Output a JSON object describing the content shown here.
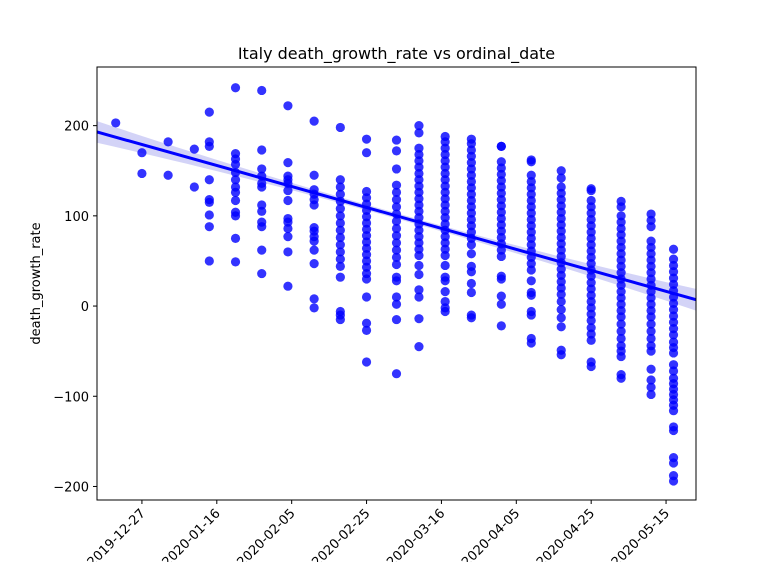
{
  "chart_data": {
    "type": "scatter",
    "title": "Italy death_growth_rate vs ordinal_date",
    "xlabel": "",
    "ylabel": "death_growth_rate",
    "x_ticks": [
      "2019-12-27",
      "2020-01-16",
      "2020-02-05",
      "2020-02-25",
      "2020-03-16",
      "2020-04-05",
      "2020-04-25",
      "2020-05-15"
    ],
    "y_ticks": [
      200,
      100,
      0,
      -100,
      -200
    ],
    "y_tick_labels": [
      "200",
      "100",
      "0",
      "−100",
      "−200"
    ],
    "xlim": [
      "2019-12-15",
      "2020-05-23"
    ],
    "ylim": [
      -215,
      265
    ],
    "grid": false,
    "point_color": "#0000ff",
    "line_color": "#0000ff",
    "band_color": "#c8c8f5",
    "regression": {
      "start": {
        "x": "2019-12-15",
        "y": 193
      },
      "end": {
        "x": "2020-05-23",
        "y": 7
      },
      "ci_halfwidth_edge": 12,
      "ci_halfwidth_center": 3
    },
    "points": [
      {
        "x": "2019-12-20",
        "y": [
          203
        ]
      },
      {
        "x": "2019-12-27",
        "y": [
          170,
          147
        ]
      },
      {
        "x": "2020-01-03",
        "y": [
          182,
          145
        ]
      },
      {
        "x": "2020-01-10",
        "y": [
          174,
          132
        ]
      },
      {
        "x": "2020-01-14",
        "y": [
          215,
          182,
          177,
          140,
          118,
          115,
          101,
          88,
          50
        ]
      },
      {
        "x": "2020-01-21",
        "y": [
          242,
          169,
          163,
          157,
          148,
          140,
          132,
          126,
          117,
          104,
          100,
          75,
          49
        ]
      },
      {
        "x": "2020-01-28",
        "y": [
          239,
          173,
          152,
          144,
          136,
          132,
          112,
          105,
          93,
          88,
          62,
          36
        ]
      },
      {
        "x": "2020-02-04",
        "y": [
          222,
          159,
          144,
          140,
          136,
          128,
          117,
          97,
          93,
          86,
          77,
          60,
          22
        ]
      },
      {
        "x": "2020-02-11",
        "y": [
          205,
          145,
          129,
          124,
          118,
          112,
          87,
          83,
          77,
          72,
          62,
          47,
          8,
          -2
        ]
      },
      {
        "x": "2020-02-18",
        "y": [
          198,
          140,
          132,
          124,
          116,
          108,
          100,
          92,
          84,
          76,
          68,
          60,
          52,
          44,
          32,
          -6,
          -10,
          -15
        ]
      },
      {
        "x": "2020-02-25",
        "y": [
          185,
          170,
          127,
          120,
          113,
          106,
          99,
          92,
          85,
          78,
          71,
          64,
          57,
          50,
          43,
          36,
          30,
          10,
          -19,
          -27,
          -62
        ]
      },
      {
        "x": "2020-03-04",
        "y": [
          184,
          172,
          152,
          134,
          126,
          118,
          110,
          102,
          94,
          86,
          78,
          70,
          62,
          54,
          46,
          32,
          28,
          10,
          2,
          -15,
          -75
        ]
      },
      {
        "x": "2020-03-10",
        "y": [
          200,
          192,
          175,
          168,
          161,
          154,
          147,
          140,
          133,
          126,
          119,
          112,
          105,
          98,
          91,
          84,
          77,
          70,
          63,
          56,
          45,
          35,
          18,
          10,
          -14,
          -45
        ]
      },
      {
        "x": "2020-03-17",
        "y": [
          188,
          182,
          175,
          168,
          161,
          154,
          147,
          140,
          133,
          126,
          119,
          112,
          105,
          98,
          91,
          84,
          77,
          70,
          63,
          56,
          45,
          32,
          28,
          16,
          5,
          -2,
          -6
        ]
      },
      {
        "x": "2020-03-24",
        "y": [
          185,
          180,
          173,
          166,
          159,
          152,
          145,
          138,
          131,
          124,
          117,
          110,
          103,
          96,
          89,
          82,
          75,
          68,
          58,
          44,
          38,
          25,
          15,
          -10,
          -13
        ]
      },
      {
        "x": "2020-04-01",
        "y": [
          177,
          177,
          160,
          153,
          146,
          139,
          132,
          125,
          118,
          111,
          104,
          97,
          90,
          83,
          76,
          69,
          62,
          55,
          33,
          30,
          11,
          2,
          -22
        ]
      },
      {
        "x": "2020-04-09",
        "y": [
          162,
          160,
          145,
          138,
          131,
          124,
          117,
          110,
          103,
          96,
          89,
          82,
          75,
          68,
          61,
          54,
          47,
          40,
          28,
          15,
          12,
          -6,
          -10,
          -36,
          -41
        ]
      },
      {
        "x": "2020-04-17",
        "y": [
          150,
          142,
          132,
          125,
          118,
          111,
          104,
          97,
          90,
          83,
          76,
          69,
          62,
          55,
          48,
          41,
          34,
          27,
          20,
          13,
          5,
          -4,
          -13,
          -23,
          -49,
          -54
        ]
      },
      {
        "x": "2020-04-25",
        "y": [
          130,
          128,
          117,
          110,
          103,
          96,
          89,
          82,
          75,
          68,
          61,
          54,
          47,
          40,
          33,
          26,
          19,
          12,
          5,
          -2,
          -9,
          -16,
          -24,
          -31,
          -38,
          -62,
          -67
        ]
      },
      {
        "x": "2020-05-03",
        "y": [
          116,
          110,
          100,
          93,
          86,
          79,
          72,
          65,
          58,
          51,
          44,
          37,
          30,
          23,
          16,
          9,
          2,
          -5,
          -12,
          -20,
          -28,
          -36,
          -44,
          -50,
          -56,
          -76,
          -80
        ]
      },
      {
        "x": "2020-05-11",
        "y": [
          102,
          95,
          88,
          72,
          65,
          58,
          51,
          44,
          37,
          30,
          23,
          16,
          9,
          2,
          -5,
          -12,
          -20,
          -28,
          -36,
          -44,
          -50,
          -70,
          -82,
          -90,
          -98
        ]
      },
      {
        "x": "2020-05-17",
        "y": [
          63,
          52,
          45,
          38,
          31,
          24,
          17,
          10,
          3,
          -4,
          -11,
          -18,
          -25,
          -32,
          -40,
          -46,
          -52,
          -65,
          -72,
          -80,
          -86,
          -92,
          -98,
          -104,
          -110,
          -116,
          -134,
          -138,
          -168,
          -174,
          -188,
          -194
        ]
      }
    ]
  }
}
